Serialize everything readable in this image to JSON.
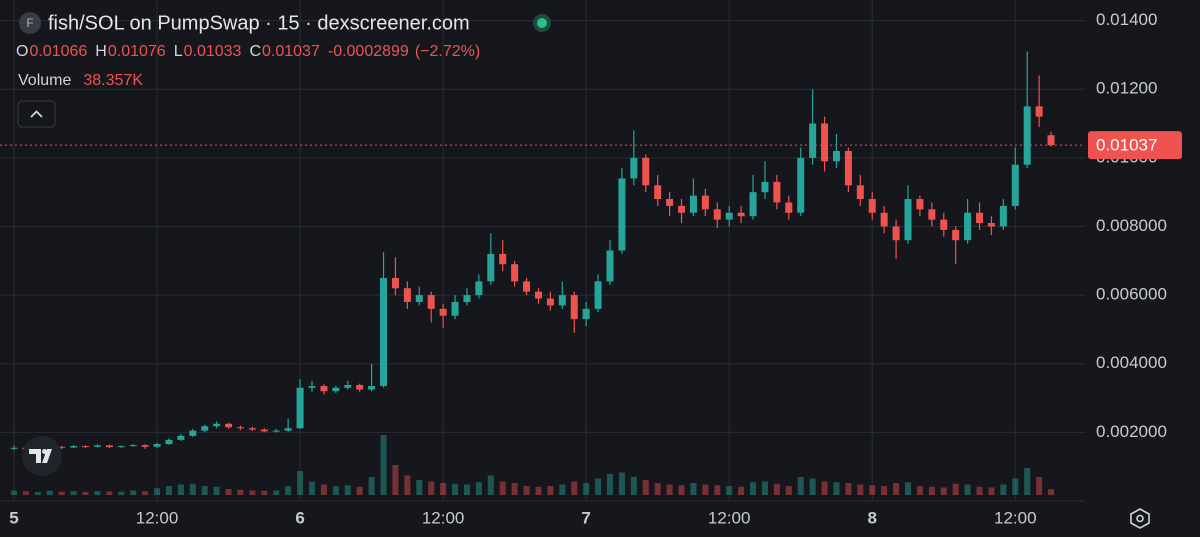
{
  "chart_data": {
    "type": "candlestick",
    "title": "fish/SOL on PumpSwap · 15 · dexscreener.com",
    "logo_letter": "F",
    "legend_labels": {
      "open": "O",
      "high": "H",
      "low": "L",
      "close": "C"
    },
    "change": -0.0002899,
    "change_pct": "(−2.72%)",
    "volume_name": "Volume",
    "volume_label": "38.357K",
    "up_color": "#26a69a",
    "down_color": "#ef5350",
    "grid": true,
    "ylim": [
      0,
      0.0146
    ],
    "yticks": [
      {
        "value": 0.002,
        "label": "0.002000"
      },
      {
        "value": 0.004,
        "label": "0.004000"
      },
      {
        "value": 0.006,
        "label": "0.006000"
      },
      {
        "value": 0.008,
        "label": "0.008000"
      },
      {
        "value": 0.01,
        "label": "0.01000"
      },
      {
        "value": 0.012,
        "label": "0.01200"
      },
      {
        "value": 0.014,
        "label": "0.01400"
      }
    ],
    "categories": [
      "5",
      null,
      null,
      null,
      null,
      null,
      null,
      null,
      null,
      null,
      null,
      null,
      "12:00",
      null,
      null,
      null,
      null,
      null,
      null,
      null,
      null,
      null,
      null,
      null,
      "6",
      null,
      null,
      null,
      null,
      null,
      null,
      null,
      null,
      null,
      null,
      null,
      "12:00",
      null,
      null,
      null,
      null,
      null,
      null,
      null,
      null,
      null,
      null,
      null,
      "7",
      null,
      null,
      null,
      null,
      null,
      null,
      null,
      null,
      null,
      null,
      null,
      "12:00",
      null,
      null,
      null,
      null,
      null,
      null,
      null,
      null,
      null,
      null,
      null,
      "8",
      null,
      null,
      null,
      null,
      null,
      null,
      null,
      null,
      null,
      null,
      null,
      "12:00",
      null,
      null,
      null
    ],
    "open": [
      0.00152,
      0.00155,
      0.0015,
      0.00153,
      0.00158,
      0.00156,
      0.0016,
      0.00158,
      0.00162,
      0.00157,
      0.0016,
      0.00163,
      0.00158,
      0.00166,
      0.00178,
      0.0019,
      0.00205,
      0.00218,
      0.00225,
      0.00215,
      0.00212,
      0.00208,
      0.00203,
      0.00205,
      0.00212,
      0.0033,
      0.00335,
      0.0032,
      0.0033,
      0.00338,
      0.00325,
      0.00335,
      0.0065,
      0.0062,
      0.0058,
      0.006,
      0.0056,
      0.0054,
      0.0058,
      0.006,
      0.0064,
      0.0072,
      0.0069,
      0.0064,
      0.0061,
      0.0059,
      0.0057,
      0.006,
      0.0053,
      0.0056,
      0.0064,
      0.0073,
      0.0094,
      0.01,
      0.0092,
      0.0088,
      0.0086,
      0.0084,
      0.0089,
      0.0085,
      0.0082,
      0.0084,
      0.0083,
      0.009,
      0.0093,
      0.0087,
      0.0084,
      0.01,
      0.011,
      0.0099,
      0.0102,
      0.0092,
      0.0088,
      0.0084,
      0.008,
      0.0076,
      0.0088,
      0.0085,
      0.0082,
      0.0079,
      0.0076,
      0.0084,
      0.0081,
      0.008,
      0.0086,
      0.0098,
      0.0115,
      0.01066
    ],
    "high": [
      0.00162,
      0.00158,
      0.00157,
      0.00161,
      0.0016,
      0.00163,
      0.00162,
      0.00165,
      0.00164,
      0.00162,
      0.00166,
      0.00165,
      0.0017,
      0.00182,
      0.00195,
      0.0021,
      0.00222,
      0.00232,
      0.00228,
      0.0022,
      0.00216,
      0.00212,
      0.0021,
      0.0024,
      0.00355,
      0.0035,
      0.0034,
      0.00336,
      0.0035,
      0.00342,
      0.004,
      0.00725,
      0.0071,
      0.0064,
      0.00625,
      0.0061,
      0.00575,
      0.006,
      0.0062,
      0.0066,
      0.0078,
      0.0076,
      0.007,
      0.0065,
      0.0062,
      0.0061,
      0.0064,
      0.0061,
      0.0058,
      0.0066,
      0.0076,
      0.0097,
      0.0108,
      0.0101,
      0.0095,
      0.009,
      0.0088,
      0.0094,
      0.0091,
      0.0087,
      0.0086,
      0.0086,
      0.0095,
      0.0099,
      0.0095,
      0.0089,
      0.0103,
      0.012,
      0.0112,
      0.0107,
      0.0103,
      0.0095,
      0.009,
      0.0086,
      0.0082,
      0.0092,
      0.0089,
      0.0087,
      0.0084,
      0.008,
      0.0088,
      0.0087,
      0.0083,
      0.0088,
      0.0103,
      0.0131,
      0.0124,
      0.01076
    ],
    "low": [
      0.00148,
      0.00146,
      0.00148,
      0.00151,
      0.00152,
      0.00154,
      0.00155,
      0.00156,
      0.00154,
      0.00155,
      0.00158,
      0.00152,
      0.00155,
      0.00164,
      0.00175,
      0.00187,
      0.002,
      0.00212,
      0.0021,
      0.00206,
      0.00204,
      0.002,
      0.002,
      0.00202,
      0.0021,
      0.00318,
      0.0031,
      0.00315,
      0.00325,
      0.00318,
      0.0032,
      0.0033,
      0.006,
      0.0056,
      0.0057,
      0.0052,
      0.00505,
      0.0053,
      0.0057,
      0.0059,
      0.0063,
      0.0067,
      0.00625,
      0.006,
      0.00575,
      0.00555,
      0.0056,
      0.0049,
      0.0051,
      0.0055,
      0.0063,
      0.0072,
      0.0092,
      0.009,
      0.0086,
      0.0083,
      0.0081,
      0.0083,
      0.0083,
      0.00795,
      0.008,
      0.0081,
      0.0082,
      0.0088,
      0.0085,
      0.0082,
      0.0083,
      0.0098,
      0.0096,
      0.0097,
      0.009,
      0.0086,
      0.0082,
      0.0078,
      0.00705,
      0.0075,
      0.0083,
      0.008,
      0.0077,
      0.0069,
      0.0075,
      0.0079,
      0.00775,
      0.0079,
      0.0085,
      0.0097,
      0.0109,
      0.01033
    ],
    "close": [
      0.00155,
      0.0015,
      0.00153,
      0.00158,
      0.00156,
      0.0016,
      0.00158,
      0.00162,
      0.00157,
      0.0016,
      0.00163,
      0.00158,
      0.00166,
      0.00178,
      0.0019,
      0.00205,
      0.00218,
      0.00225,
      0.00215,
      0.00212,
      0.00208,
      0.00203,
      0.00205,
      0.00212,
      0.0033,
      0.00335,
      0.0032,
      0.0033,
      0.00338,
      0.00325,
      0.00335,
      0.0065,
      0.0062,
      0.0058,
      0.006,
      0.0056,
      0.0054,
      0.0058,
      0.006,
      0.0064,
      0.0072,
      0.0069,
      0.0064,
      0.0061,
      0.0059,
      0.0057,
      0.006,
      0.0053,
      0.0056,
      0.0064,
      0.0073,
      0.0094,
      0.01,
      0.0092,
      0.0088,
      0.0086,
      0.0084,
      0.0089,
      0.0085,
      0.0082,
      0.0084,
      0.0083,
      0.009,
      0.0093,
      0.0087,
      0.0084,
      0.01,
      0.011,
      0.0099,
      0.0102,
      0.0092,
      0.0088,
      0.0084,
      0.008,
      0.0076,
      0.0088,
      0.0085,
      0.0082,
      0.0079,
      0.0076,
      0.0084,
      0.0081,
      0.008,
      0.0086,
      0.0098,
      0.0115,
      0.0112,
      0.01037
    ],
    "volume": [
      30000,
      25000,
      20000,
      28000,
      22000,
      25000,
      20000,
      26000,
      24000,
      22000,
      30000,
      25000,
      45000,
      60000,
      70000,
      75000,
      60000,
      55000,
      40000,
      35000,
      30000,
      28000,
      30000,
      60000,
      160000,
      90000,
      70000,
      60000,
      65000,
      55000,
      120000,
      400000,
      200000,
      130000,
      100000,
      90000,
      80000,
      75000,
      70000,
      85000,
      130000,
      90000,
      80000,
      60000,
      55000,
      60000,
      70000,
      90000,
      80000,
      110000,
      140000,
      150000,
      120000,
      100000,
      80000,
      70000,
      65000,
      80000,
      70000,
      65000,
      60000,
      55000,
      85000,
      90000,
      75000,
      60000,
      120000,
      110000,
      90000,
      85000,
      80000,
      70000,
      65000,
      60000,
      80000,
      85000,
      60000,
      55000,
      50000,
      75000,
      70000,
      55000,
      50000,
      70000,
      110000,
      180000,
      120000,
      38357
    ]
  }
}
